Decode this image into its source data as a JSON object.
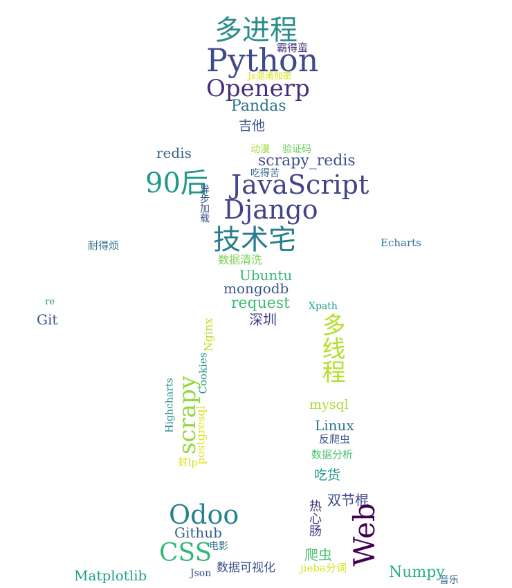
{
  "words": [
    {
      "text": "多进程",
      "color": "#2a8c8a"
    },
    {
      "text": "Python",
      "color": "#3e4a89"
    },
    {
      "text": "霸得蛮",
      "color": "#46337e"
    },
    {
      "text": "Js混淆加密",
      "color": "#d8e219"
    },
    {
      "text": "Openerp",
      "color": "#472c7a"
    },
    {
      "text": "Pandas",
      "color": "#2c728e"
    },
    {
      "text": "吉他",
      "color": "#3b528b"
    },
    {
      "text": "redis",
      "color": "#33638d"
    },
    {
      "text": "动漫",
      "color": "#a5db36"
    },
    {
      "text": "验证码",
      "color": "#6ece58"
    },
    {
      "text": "scrapy_redis",
      "color": "#3e4c8a"
    },
    {
      "text": "吃得苦",
      "color": "#31688e"
    },
    {
      "text": "90后",
      "color": "#1f988b"
    },
    {
      "text": "JavaScript",
      "color": "#404387"
    },
    {
      "text": "异步加载",
      "color": "#3b528b"
    },
    {
      "text": "Django",
      "color": "#414487"
    },
    {
      "text": "技术宅",
      "color": "#287c8e"
    },
    {
      "text": "耐得烦",
      "color": "#2d708e"
    },
    {
      "text": "Echarts",
      "color": "#2c728e"
    },
    {
      "text": "数据清洗",
      "color": "#7ad151"
    },
    {
      "text": "Ubuntu",
      "color": "#35b779"
    },
    {
      "text": "mongodb",
      "color": "#39568c"
    },
    {
      "text": "request",
      "color": "#3cbb75"
    },
    {
      "text": "re",
      "color": "#25858e"
    },
    {
      "text": "Xpath",
      "color": "#1e9c89"
    },
    {
      "text": "Git",
      "color": "#3b528b"
    },
    {
      "text": "深圳",
      "color": "#423f85"
    },
    {
      "text": "Nginx",
      "color": "#c2df23"
    },
    {
      "text": "多线程",
      "color": "#b5de2b"
    },
    {
      "text": "Cookies",
      "color": "#218f8d"
    },
    {
      "text": "Highcharts",
      "color": "#228d8d"
    },
    {
      "text": "scrapy",
      "color": "#95d840"
    },
    {
      "text": "postgresql",
      "color": "#dde318"
    },
    {
      "text": "mysql",
      "color": "#a8db34"
    },
    {
      "text": "Linux",
      "color": "#2c728e"
    },
    {
      "text": "封Ip",
      "color": "#d0e11c"
    },
    {
      "text": "反爬虫",
      "color": "#3b528b"
    },
    {
      "text": "数据分析",
      "color": "#4ac16d"
    },
    {
      "text": "吃货",
      "color": "#1f968b"
    },
    {
      "text": "双节棍",
      "color": "#3f4889"
    },
    {
      "text": "Odoo",
      "color": "#26828e"
    },
    {
      "text": "热心肠",
      "color": "#453781"
    },
    {
      "text": "Web",
      "color": "#440154"
    },
    {
      "text": "Github",
      "color": "#355f8d"
    },
    {
      "text": "电影",
      "color": "#2e6f8e"
    },
    {
      "text": "CSS",
      "color": "#35b779"
    },
    {
      "text": "爬虫",
      "color": "#4ac16d"
    },
    {
      "text": "Matplotlib",
      "color": "#1fa088"
    },
    {
      "text": "Json",
      "color": "#3b528b"
    },
    {
      "text": "数据可视化",
      "color": "#3b528b"
    },
    {
      "text": "jieba分词",
      "color": "#d2e21b"
    },
    {
      "text": "Numpy",
      "color": "#29af7f"
    },
    {
      "text": "音乐",
      "color": "#31688e"
    }
  ]
}
